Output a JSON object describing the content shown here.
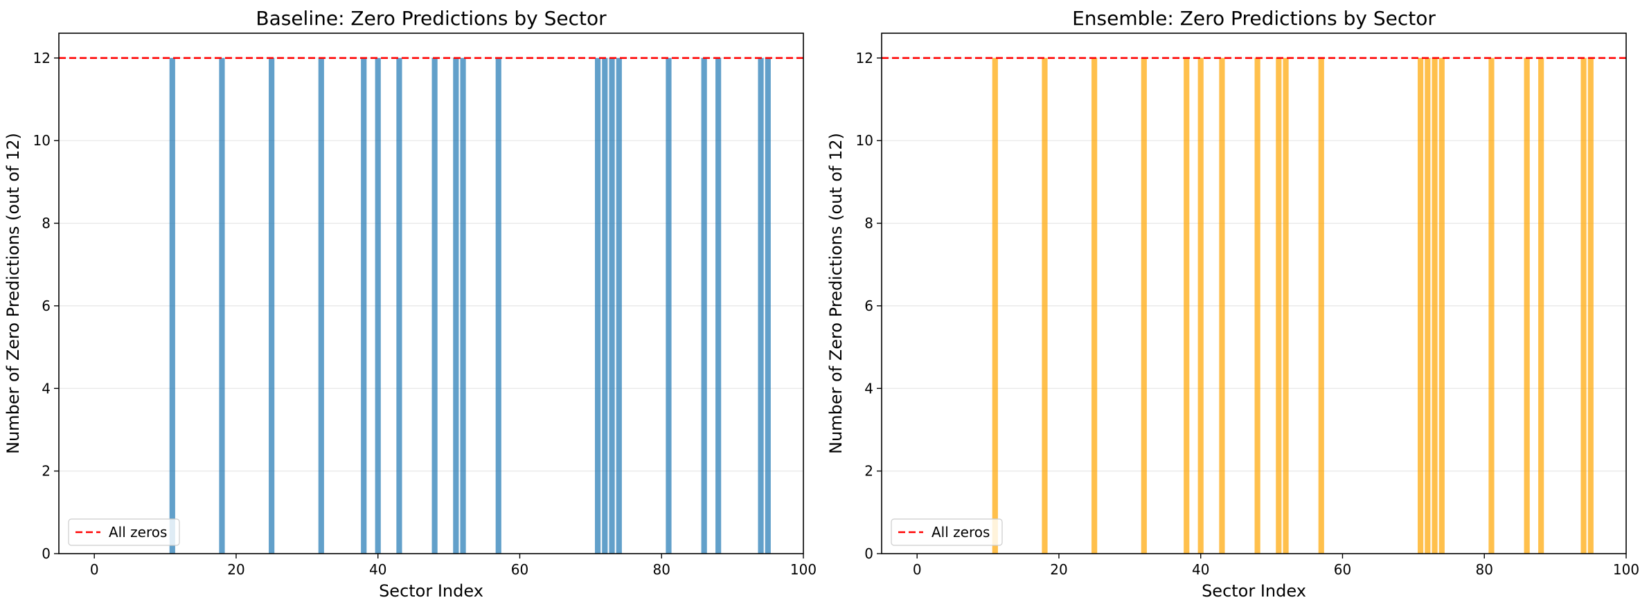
{
  "chart_data": [
    {
      "type": "bar",
      "title": "Baseline: Zero Predictions by Sector",
      "xlabel": "Sector Index",
      "ylabel": "Number of Zero Predictions (out of 12)",
      "xlim": [
        -5,
        100
      ],
      "ylim": [
        0,
        12.6
      ],
      "xticks": [
        0,
        20,
        40,
        60,
        80,
        100
      ],
      "yticks": [
        0,
        2,
        4,
        6,
        8,
        10,
        12
      ],
      "grid": "y",
      "bar_color": "#1f77b4",
      "x": [
        11,
        18,
        25,
        32,
        38,
        40,
        43,
        48,
        51,
        52,
        57,
        71,
        72,
        73,
        74,
        81,
        86,
        88,
        94,
        95
      ],
      "values": [
        12,
        12,
        12,
        12,
        12,
        12,
        12,
        12,
        12,
        12,
        12,
        12,
        12,
        12,
        12,
        12,
        12,
        12,
        12,
        12
      ],
      "reference_line": {
        "y": 12,
        "label": "All zeros",
        "color": "#ff0000",
        "style": "dashed"
      },
      "legend": {
        "position": "lower-left",
        "entries": [
          "All zeros"
        ]
      }
    },
    {
      "type": "bar",
      "title": "Ensemble: Zero Predictions by Sector",
      "xlabel": "Sector Index",
      "ylabel": "Number of Zero Predictions (out of 12)",
      "xlim": [
        -5,
        100
      ],
      "ylim": [
        0,
        12.6
      ],
      "xticks": [
        0,
        20,
        40,
        60,
        80,
        100
      ],
      "yticks": [
        0,
        2,
        4,
        6,
        8,
        10,
        12
      ],
      "grid": "y",
      "bar_color": "#ffa500",
      "x": [
        11,
        18,
        25,
        32,
        38,
        40,
        43,
        48,
        51,
        52,
        57,
        71,
        72,
        73,
        74,
        81,
        86,
        88,
        94,
        95
      ],
      "values": [
        12,
        12,
        12,
        12,
        12,
        12,
        12,
        12,
        12,
        12,
        12,
        12,
        12,
        12,
        12,
        12,
        12,
        12,
        12,
        12
      ],
      "reference_line": {
        "y": 12,
        "label": "All zeros",
        "color": "#ff0000",
        "style": "dashed"
      },
      "legend": {
        "position": "lower-left",
        "entries": [
          "All zeros"
        ]
      }
    }
  ]
}
